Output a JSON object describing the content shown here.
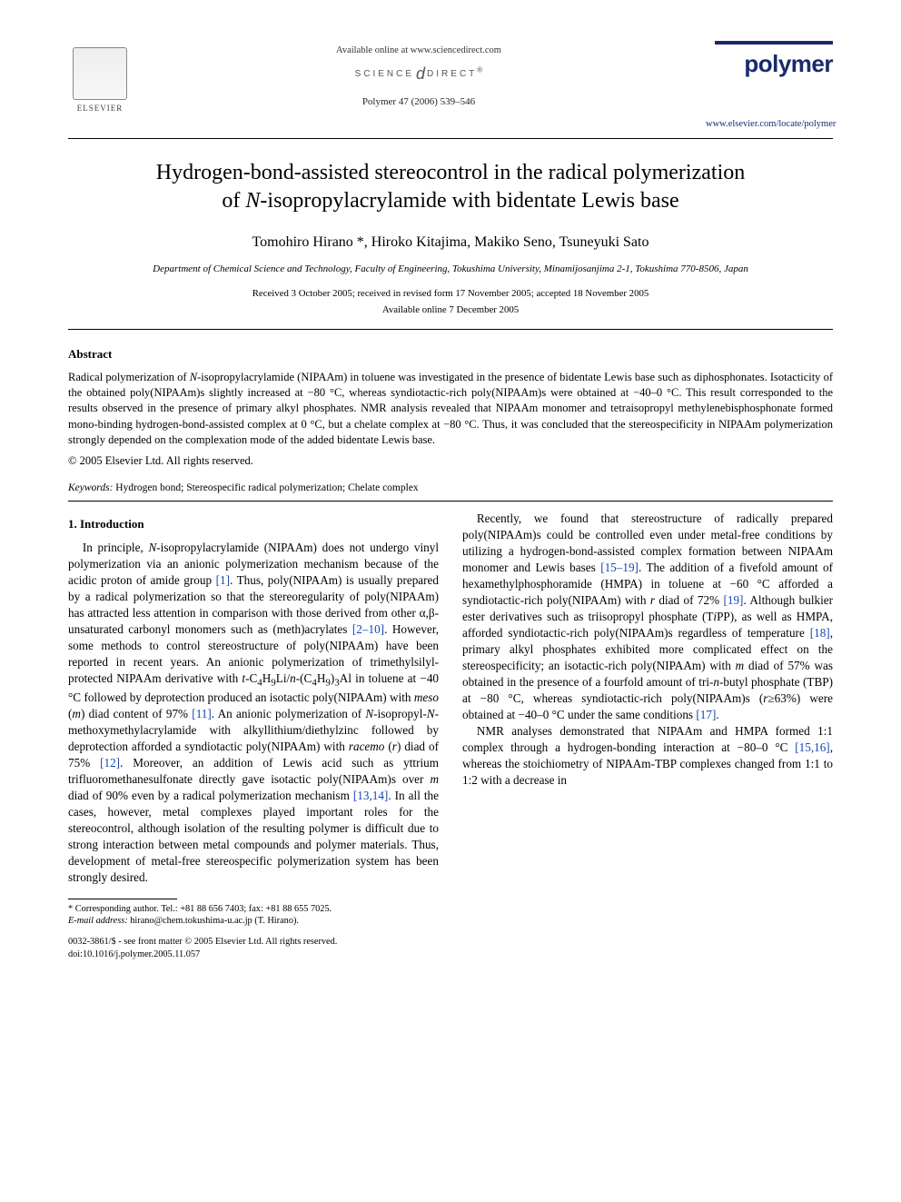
{
  "header": {
    "available": "Available online at www.sciencedirect.com",
    "science_direct": "SCIENCE",
    "science_direct2": "DIRECT",
    "journal_ref": "Polymer 47 (2006) 539–546",
    "elsevier": "ELSEVIER",
    "polymer_word": "polymer",
    "polymer_link": "www.elsevier.com/locate/polymer"
  },
  "title": {
    "line1": "Hydrogen-bond-assisted stereocontrol in the radical polymerization",
    "line2_pre": "of ",
    "line2_ital": "N",
    "line2_post": "-isopropylacrylamide with bidentate Lewis base"
  },
  "authors": "Tomohiro Hirano *, Hiroko Kitajima, Makiko Seno, Tsuneyuki Sato",
  "affiliation": "Department of Chemical Science and Technology, Faculty of Engineering, Tokushima University, Minamijosanjima 2-1, Tokushima 770-8506, Japan",
  "dates": {
    "received": "Received 3 October 2005; received in revised form 17 November 2005; accepted 18 November 2005",
    "online": "Available online 7 December 2005"
  },
  "abstract": {
    "heading": "Abstract",
    "body_html": "Radical polymerization of <span class='ital'>N</span>-isopropylacrylamide (NIPAAm) in toluene was investigated in the presence of bidentate Lewis base such as diphosphonates. Isotacticity of the obtained poly(NIPAAm)s slightly increased at −80 °C, whereas syndiotactic-rich poly(NIPAAm)s were obtained at −40–0 °C. This result corresponded to the results observed in the presence of primary alkyl phosphates. NMR analysis revealed that NIPAAm monomer and tetraisopropyl methylenebisphosphonate formed mono-binding hydrogen-bond-assisted complex at 0 °C, but a chelate complex at −80 °C. Thus, it was concluded that the stereospecificity in NIPAAm polymerization strongly depended on the complexation mode of the added bidentate Lewis base.",
    "copyright": "© 2005 Elsevier Ltd. All rights reserved."
  },
  "keywords": {
    "label": "Keywords:",
    "text": " Hydrogen bond; Stereospecific radical polymerization; Chelate complex"
  },
  "intro": {
    "heading": "1. Introduction",
    "p1_html": "In principle, <span class='ital'>N</span>-isopropylacrylamide (NIPAAm) does not undergo vinyl polymerization via an anionic polymerization mechanism because of the acidic proton of amide group <span class='ref'>[1]</span>. Thus, poly(NIPAAm) is usually prepared by a radical polymerization so that the stereoregularity of poly(NIPAAm) has attracted less attention in comparison with those derived from other α,β-unsaturated carbonyl monomers such as (meth)acrylates <span class='ref'>[2–10]</span>. However, some methods to control stereostructure of poly(NIPAAm) have been reported in recent years. An anionic polymerization of trimethylsilyl-protected NIPAAm derivative with <span class='ital'>t</span>-C<sub>4</sub>H<sub>9</sub>Li/<span class='ital'>n</span>-(C<sub>4</sub>H<sub>9</sub>)<sub>3</sub>Al in toluene at −40 °C followed by deprotection produced an isotactic poly(NIPAAm) with <span class='ital'>meso</span> (<span class='ital'>m</span>) diad content of 97% <span class='ref'>[11]</span>. An anionic polymerization of <span class='ital'>N</span>-isopropyl-<span class='ital'>N</span>-methoxymethylacrylamide with alkyllithium/diethylzinc followed by deprotection afforded a syndiotactic poly(NIPAAm) with <span class='ital'>racemo</span> (<span class='ital'>r</span>) diad of 75% <span class='ref'>[12]</span>. Moreover, an addition of Lewis acid such as yttrium trifluoromethanesulfonate directly gave isotactic poly(NIPAAm)s over <span class='ital'>m</span> diad of 90% even by a radical polymerization mechanism <span class='ref'>[13,14]</span>. In all the cases, however, metal complexes played important roles for the stereocontrol, although isolation of the resulting polymer is difficult due to strong interaction between metal compounds and polymer materials. Thus, development of metal-free stereospecific polymerization system has been strongly desired.",
    "p2_html": "Recently, we found that stereostructure of radically prepared poly(NIPAAm)s could be controlled even under metal-free conditions by utilizing a hydrogen-bond-assisted complex formation between NIPAAm monomer and Lewis bases <span class='ref'>[15–19]</span>. The addition of a fivefold amount of hexamethylphosphoramide (HMPA) in toluene at −60 °C afforded a syndiotactic-rich poly(NIPAAm) with <span class='ital'>r</span> diad of 72% <span class='ref'>[19]</span>. Although bulkier ester derivatives such as triisopropyl phosphate (T<span class='ital'>i</span>PP), as well as HMPA, afforded syndiotactic-rich poly(NIPAAm)s regardless of temperature <span class='ref'>[18]</span>, primary alkyl phosphates exhibited more complicated effect on the stereospecificity; an isotactic-rich poly(NIPAAm) with <span class='ital'>m</span> diad of 57% was obtained in the presence of a fourfold amount of tri-<span class='ital'>n</span>-butyl phosphate (TBP) at −80 °C, whereas syndiotactic-rich poly(NIPAAm)s (<span class='ital'>r</span>≥63%) were obtained at −40–0 °C under the same conditions <span class='ref'>[17]</span>.",
    "p3_html": "NMR analyses demonstrated that NIPAAm and HMPA formed 1:1 complex through a hydrogen-bonding interaction at −80–0 °C <span class='ref'>[15,16]</span>, whereas the stoichiometry of NIPAAm-TBP complexes changed from 1:1 to 1:2 with a decrease in"
  },
  "footnotes": {
    "corr": "* Corresponding author. Tel.: +81 88 656 7403; fax: +81 88 655 7025.",
    "email_label": "E-mail address:",
    "email": " hirano@chem.tokushima-u.ac.jp (T. Hirano)."
  },
  "bottom": {
    "issn": "0032-3861/$ - see front matter © 2005 Elsevier Ltd. All rights reserved.",
    "doi": "doi:10.1016/j.polymer.2005.11.057"
  }
}
